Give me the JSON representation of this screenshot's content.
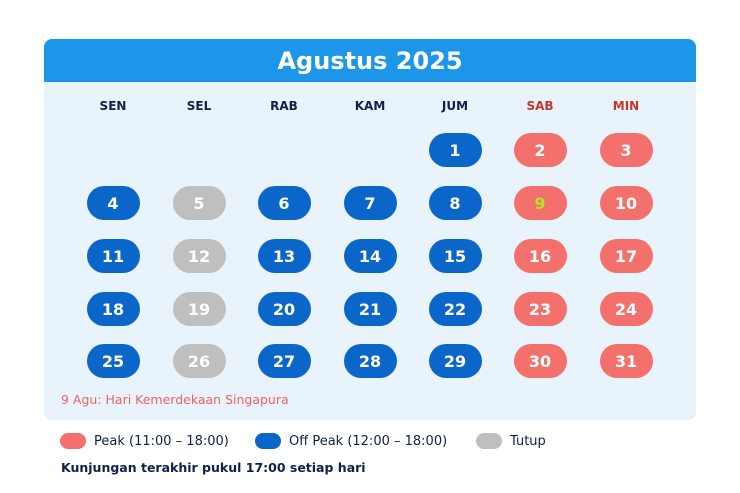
{
  "calendar": {
    "title": "Agustus 2025",
    "weekdays": [
      "SEN",
      "SEL",
      "RAB",
      "KAM",
      "JUM",
      "SAB",
      "MIN"
    ],
    "weeks": [
      [
        null,
        null,
        null,
        null,
        1,
        2,
        3
      ],
      [
        4,
        5,
        6,
        7,
        8,
        9,
        10
      ],
      [
        11,
        12,
        13,
        14,
        15,
        16,
        17
      ],
      [
        18,
        19,
        20,
        21,
        22,
        23,
        24
      ],
      [
        25,
        26,
        27,
        28,
        29,
        30,
        31
      ]
    ],
    "day_status": {
      "1": "offpeak",
      "2": "peak",
      "3": "peak",
      "4": "offpeak",
      "5": "closed",
      "6": "offpeak",
      "7": "offpeak",
      "8": "offpeak",
      "9": "peak",
      "10": "peak",
      "11": "offpeak",
      "12": "closed",
      "13": "offpeak",
      "14": "offpeak",
      "15": "offpeak",
      "16": "peak",
      "17": "peak",
      "18": "offpeak",
      "19": "closed",
      "20": "offpeak",
      "21": "offpeak",
      "22": "offpeak",
      "23": "peak",
      "24": "peak",
      "25": "offpeak",
      "26": "closed",
      "27": "offpeak",
      "28": "offpeak",
      "29": "offpeak",
      "30": "peak",
      "31": "peak"
    },
    "holiday_days": [
      9
    ],
    "holiday_note": "9 Agu: Hari Kemerdekaan Singapura"
  },
  "legend": {
    "peak_label": "Peak (11:00 – 18:00)",
    "offpeak_label": "Off Peak (12:00 – 18:00)",
    "closed_label": "Tutup"
  },
  "footer": {
    "text": "Kunjungan terakhir pukul 17:00 setiap hari"
  },
  "colors": {
    "header": "#1c96e8",
    "calendar_bg": "#e8f3fc",
    "peak": "#f4706c",
    "offpeak": "#0a67c9",
    "closed": "#bfbfbf",
    "holiday_text": "#b5e61d",
    "weekend_text": "#c0392b",
    "weekday_text": "#10204a"
  }
}
